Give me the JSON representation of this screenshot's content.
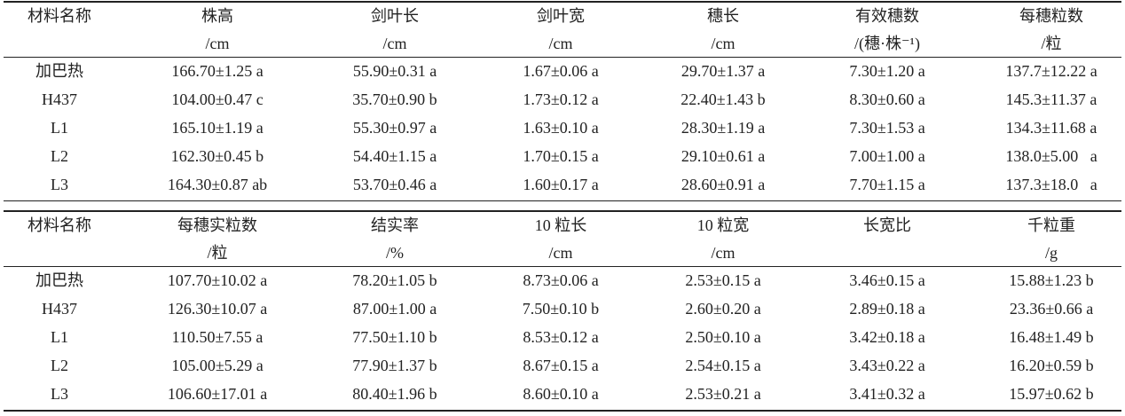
{
  "tables": [
    {
      "header": [
        {
          "name": "材料名称"
        },
        {
          "name": "株高",
          "unit": "/cm"
        },
        {
          "name": "剑叶长",
          "unit": "/cm"
        },
        {
          "name": "剑叶宽",
          "unit": "/cm"
        },
        {
          "name": "穗长",
          "unit": "/cm"
        },
        {
          "name": "有效穗数",
          "unit": "/(穗·株⁻¹)"
        },
        {
          "name": "每穗粒数",
          "unit": "/粒"
        }
      ],
      "rows": [
        [
          "加巴热",
          "166.70±1.25 a",
          "55.90±0.31 a",
          "1.67±0.06 a",
          "29.70±1.37 a",
          "7.30±1.20 a",
          "137.7±12.22 a"
        ],
        [
          "H437",
          "104.00±0.47 c",
          "35.70±0.90 b",
          "1.73±0.12 a",
          "22.40±1.43 b",
          "8.30±0.60 a",
          "145.3±11.37 a"
        ],
        [
          "L1",
          "165.10±1.19 a",
          "55.30±0.97 a",
          "1.63±0.10 a",
          "28.30±1.19 a",
          "7.30±1.53 a",
          "134.3±11.68 a"
        ],
        [
          "L2",
          "162.30±0.45 b",
          "54.40±1.15 a",
          "1.70±0.15 a",
          "29.10±0.61 a",
          "7.00±1.00 a",
          "138.0±5.00   a"
        ],
        [
          "L3",
          "164.30±0.87 ab",
          "53.70±0.46 a",
          "1.60±0.17 a",
          "28.60±0.91 a",
          "7.70±1.15 a",
          "137.3±18.0   a"
        ]
      ]
    },
    {
      "header": [
        {
          "name": "材料名称"
        },
        {
          "name": "每穗实粒数",
          "unit": "/粒"
        },
        {
          "name": "结实率",
          "unit": "/%"
        },
        {
          "name": "10 粒长",
          "unit": "/cm"
        },
        {
          "name": "10 粒宽",
          "unit": "/cm"
        },
        {
          "name": "长宽比"
        },
        {
          "name": "千粒重",
          "unit": "/g"
        }
      ],
      "rows": [
        [
          "加巴热",
          "107.70±10.02 a",
          "78.20±1.05 b",
          "8.73±0.06 a",
          "2.53±0.15 a",
          "3.46±0.15 a",
          "15.88±1.23 b"
        ],
        [
          "H437",
          "126.30±10.07 a",
          "87.00±1.00 a",
          "7.50±0.10 b",
          "2.60±0.20 a",
          "2.89±0.18 a",
          "23.36±0.66 a"
        ],
        [
          "L1",
          "110.50±7.55 a",
          "77.50±1.10 b",
          "8.53±0.12 a",
          "2.50±0.10 a",
          "3.42±0.18 a",
          "16.48±1.49 b"
        ],
        [
          "L2",
          "105.00±5.29 a",
          "77.90±1.37 b",
          "8.67±0.15 a",
          "2.54±0.15 a",
          "3.43±0.22 a",
          "16.20±0.59 b"
        ],
        [
          "L3",
          "106.60±17.01 a",
          "80.40±1.96 b",
          "8.60±0.10 a",
          "2.53±0.21 a",
          "3.41±0.32 a",
          "15.97±0.62 b"
        ]
      ]
    }
  ]
}
